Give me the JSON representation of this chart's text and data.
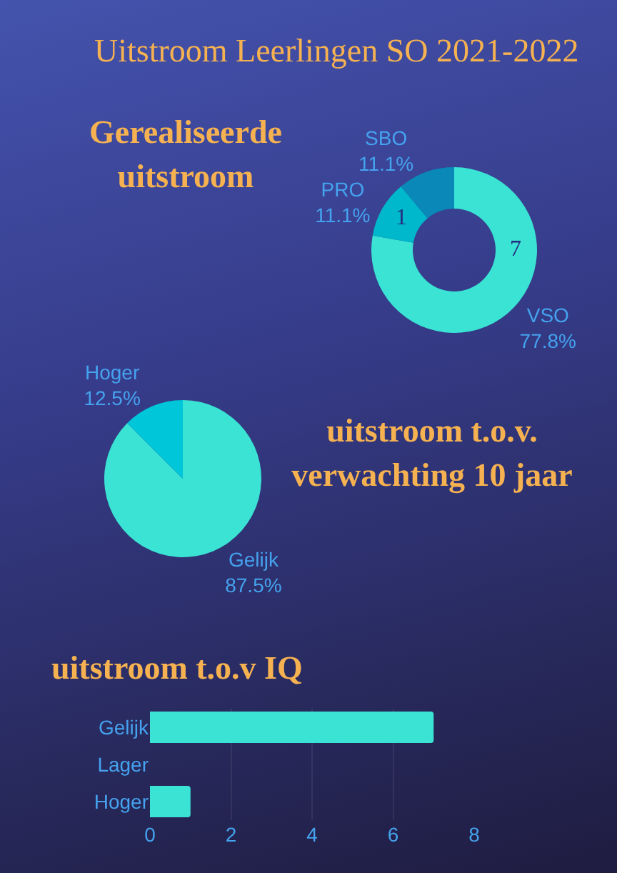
{
  "chart_data": [
    {
      "type": "other",
      "title": "Uitstroom Leerlingen SO 2021-2022"
    },
    {
      "type": "donut",
      "title": "Gerealiseerde uitstroom",
      "categories": [
        "VSO",
        "PRO",
        "SBO"
      ],
      "values": [
        77.8,
        11.1,
        11.1
      ],
      "colors": [
        "#3ae3d4",
        "#00b8cc",
        "#0a88b8"
      ],
      "value_labels": [
        "77.8%",
        "11.1%",
        "11.1%"
      ],
      "annotations": [
        "7",
        "1"
      ]
    },
    {
      "type": "pie",
      "title": "uitstroom t.o.v. verwachting 10 jaar",
      "categories": [
        "Gelijk",
        "Hoger"
      ],
      "values": [
        87.5,
        12.5
      ],
      "colors": [
        "#3ae3d4",
        "#00c6da"
      ],
      "value_labels": [
        "87.5%",
        "12.5%"
      ]
    },
    {
      "type": "bar",
      "title": "uitstroom t.o.v IQ",
      "orientation": "horizontal",
      "categories": [
        "Gelijk",
        "Lager",
        "Hoger"
      ],
      "values": [
        7,
        0,
        1
      ],
      "color": "#3ae3d4",
      "xlim": [
        0,
        8
      ],
      "xticks": [
        0,
        2,
        4,
        6,
        8
      ],
      "grid": "x"
    }
  ]
}
